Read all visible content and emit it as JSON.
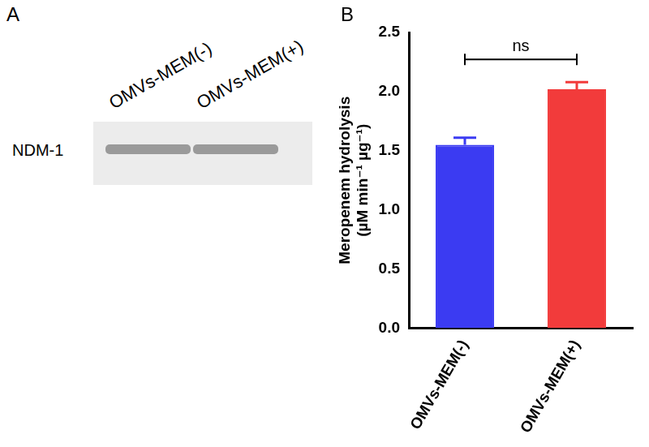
{
  "panels": [
    "A",
    "B"
  ],
  "blot": {
    "lanes": [
      "OMVs-MEM(-)",
      "OMVs-MEM(+)"
    ],
    "band": "NDM-1"
  },
  "chart_data": {
    "type": "bar",
    "categories": [
      "OMVs-MEM(-)",
      "OMVs-MEM(+)"
    ],
    "values": [
      1.55,
      2.02
    ],
    "errors": [
      0.06,
      0.06
    ],
    "colors": [
      "#3b3bf2",
      "#f23b3b"
    ],
    "y_label": [
      "Meropenem hydrolysis",
      "(µM min⁻¹ µg⁻¹)"
    ],
    "ylim": [
      0,
      2.5
    ],
    "yticks": [
      {
        "value": 0,
        "label": "0.0"
      },
      0.5,
      {
        "value": 1,
        "label": "1.0"
      },
      1.5,
      {
        "value": 2,
        "label": "2.0"
      },
      2.5
    ],
    "annotations": [
      {
        "text": "ns",
        "between": [
          "OMVs-MEM(-)",
          "OMVs-MEM(+)"
        ]
      }
    ],
    "grid": false
  }
}
